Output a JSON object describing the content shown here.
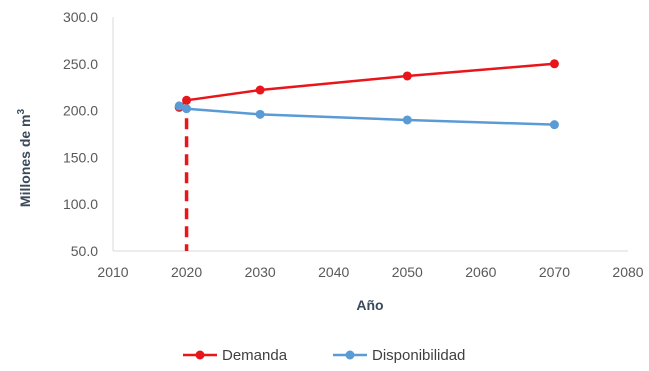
{
  "chart_data": {
    "type": "line",
    "xlabel": "Año",
    "ylabel": "Millones de m",
    "ylabel_sup": "3",
    "xlim": [
      2010,
      2080
    ],
    "ylim": [
      50,
      300
    ],
    "xticks": [
      2010,
      2020,
      2030,
      2040,
      2050,
      2060,
      2070,
      2080
    ],
    "yticks": [
      50,
      100,
      150,
      200,
      250,
      300
    ],
    "xtick_labels": [
      "2010",
      "2020",
      "2030",
      "2040",
      "2050",
      "2060",
      "2070",
      "2080"
    ],
    "ytick_labels": [
      "50.0",
      "100.0",
      "150.0",
      "200.0",
      "250.0",
      "300.0"
    ],
    "grid": false,
    "legend_position": "bottom",
    "series": [
      {
        "name": "Demanda",
        "color": "#e8161b",
        "x": [
          2019,
          2020,
          2030,
          2050,
          2070
        ],
        "y": [
          203.5,
          211,
          222,
          237,
          250
        ]
      },
      {
        "name": "Disponibilidad",
        "color": "#5b9bd5",
        "x": [
          2019,
          2020,
          2030,
          2050,
          2070
        ],
        "y": [
          205,
          202,
          196,
          190,
          185
        ]
      }
    ],
    "reference_line": {
      "style": "dashed",
      "color": "#e8161b",
      "x": 2020,
      "y_from": 50,
      "y_to": 211
    }
  }
}
